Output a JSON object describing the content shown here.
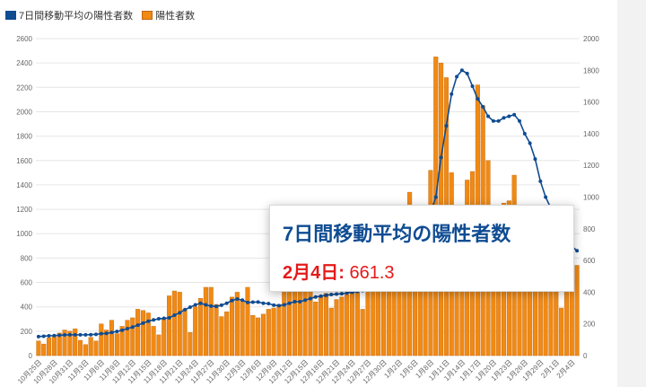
{
  "legend": {
    "series_line": "7日間移動平均の陽性者数",
    "series_bar": "陽性者数"
  },
  "tooltip": {
    "title": "7日間移動平均の陽性者数",
    "date": "2月4日:",
    "value": "661.3"
  },
  "colors": {
    "line": "#0f4c92",
    "bar": "#f08a14",
    "bar_edge": "#c4650b",
    "tooltip_date": "#e41a1a",
    "tooltip_title": "#0f4c92"
  },
  "chart_data": {
    "type": "bar",
    "x_tick_labels": [
      "10月25日",
      "10月28日",
      "10月31日",
      "11月3日",
      "11月6日",
      "11月9日",
      "11月12日",
      "11月15日",
      "11月18日",
      "11月21日",
      "11月24日",
      "11月27日",
      "11月30日",
      "12月3日",
      "12月6日",
      "12月9日",
      "12月12日",
      "12月15日",
      "12月18日",
      "12月21日",
      "12月24日",
      "12月27日",
      "12月30日",
      "1月2日",
      "1月5日",
      "1月8日",
      "1月11日",
      "1月14日",
      "1月17日",
      "1月20日",
      "1月23日",
      "1月26日",
      "1月29日",
      "2月1日",
      "2月4日"
    ],
    "y_left_ticks": [
      0,
      200,
      400,
      600,
      800,
      1000,
      1200,
      1400,
      1600,
      1800,
      2000,
      2200,
      2400,
      2600
    ],
    "y_right_ticks": [
      0,
      200,
      400,
      600,
      800,
      1000,
      1200,
      1400,
      1600,
      1800,
      2000
    ],
    "y_left_lim": [
      0,
      2600
    ],
    "y_right_lim": [
      0,
      2000
    ],
    "grid": true,
    "legend_position": "top-left",
    "series": [
      {
        "name": "陽性者数",
        "kind": "bar",
        "axis": "left",
        "values": [
          120,
          95,
          145,
          155,
          185,
          210,
          200,
          220,
          125,
          90,
          150,
          120,
          260,
          210,
          290,
          180,
          240,
          290,
          310,
          380,
          370,
          350,
          240,
          170,
          300,
          490,
          530,
          520,
          380,
          190,
          400,
          470,
          560,
          560,
          420,
          320,
          360,
          480,
          520,
          450,
          560,
          330,
          310,
          340,
          380,
          390,
          420,
          600,
          520,
          610,
          720,
          600,
          880,
          440,
          480,
          510,
          390,
          460,
          480,
          500,
          560,
          540,
          380,
          520,
          580,
          600,
          650,
          700,
          760,
          800,
          880,
          1340,
          900,
          960,
          1130,
          1520,
          2450,
          2400,
          2280,
          1500,
          1200,
          1150,
          1440,
          1510,
          2220,
          2050,
          1600,
          1200,
          1050,
          1250,
          1270,
          1480,
          990,
          940,
          870,
          800,
          740,
          650,
          600,
          560,
          390,
          520,
          680,
          740
        ]
      },
      {
        "name": "7日間移動平均の陽性者数",
        "kind": "line",
        "axis": "right",
        "values": [
          120,
          122,
          125,
          126,
          128,
          130,
          131,
          131,
          131,
          131,
          132,
          134,
          138,
          140,
          146,
          152,
          160,
          170,
          180,
          192,
          205,
          217,
          225,
          232,
          235,
          238,
          255,
          270,
          290,
          305,
          320,
          330,
          320,
          312,
          310,
          318,
          330,
          347,
          357,
          350,
          335,
          337,
          338,
          330,
          328,
          318,
          315,
          320,
          330,
          340,
          340,
          350,
          360,
          370,
          375,
          380,
          385,
          388,
          390,
          395,
          400,
          405,
          410,
          418,
          425,
          440,
          460,
          480,
          500,
          520,
          560,
          640,
          710,
          760,
          820,
          900,
          1000,
          1250,
          1450,
          1650,
          1760,
          1800,
          1780,
          1700,
          1620,
          1570,
          1510,
          1480,
          1480,
          1500,
          1510,
          1520,
          1480,
          1400,
          1340,
          1240,
          1100,
          1000,
          930,
          880,
          830,
          760,
          690,
          661.3
        ]
      }
    ]
  }
}
